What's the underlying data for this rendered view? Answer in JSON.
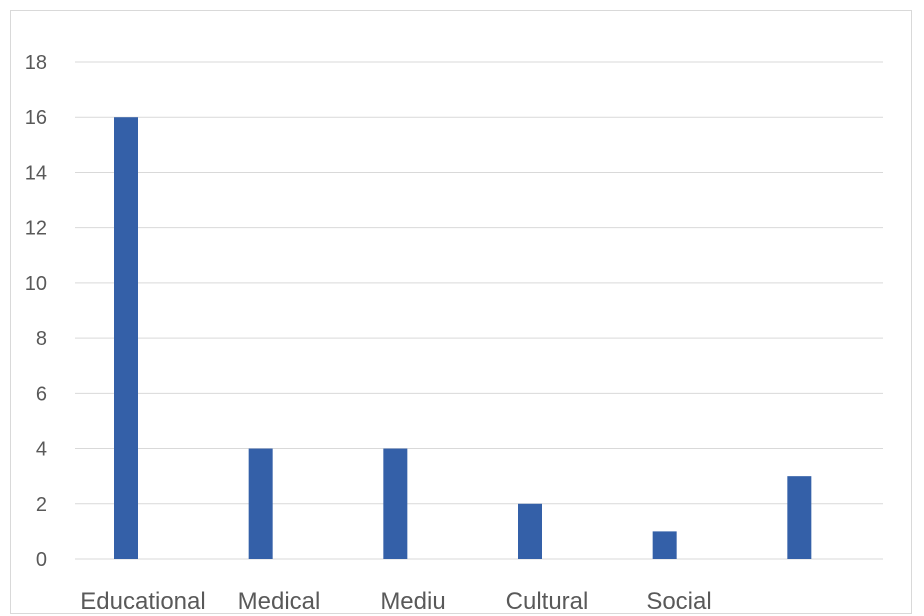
{
  "chart_data": {
    "type": "bar",
    "title": "",
    "xlabel": "",
    "ylabel": "",
    "categories": [
      "Educational",
      "Medical",
      "Mediu",
      "Cultural",
      "Social",
      ""
    ],
    "values": [
      16,
      4,
      4,
      2,
      1,
      3
    ],
    "ylim": [
      0,
      18
    ],
    "yticks": [
      "0",
      "2",
      "4",
      "6",
      "8",
      "10",
      "12",
      "14",
      "16",
      "18"
    ],
    "grid": true,
    "legend": "none",
    "bar_color": "#3460A8",
    "grid_color": "#D9D9D9",
    "label_color": "#595959"
  }
}
